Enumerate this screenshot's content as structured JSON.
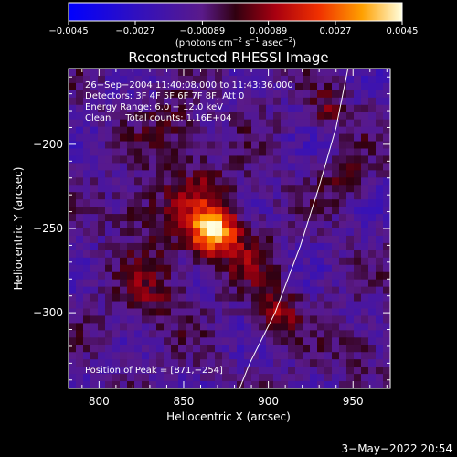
{
  "chart_data": {
    "type": "heatmap",
    "title": "Reconstructed RHESSI Image",
    "xlabel": "Heliocentric X (arcsec)",
    "ylabel": "Heliocentric Y (arcsec)",
    "xlim": [
      782,
      972
    ],
    "ylim": [
      -345,
      -155
    ],
    "xticks": [
      800,
      850,
      900,
      950
    ],
    "yticks": [
      -200,
      -250,
      -300
    ],
    "xtick_labels": [
      "800",
      "850",
      "900",
      "950"
    ],
    "ytick_labels": [
      "−200",
      "−250",
      "−300"
    ],
    "colorbar": {
      "range": [
        -0.0045,
        0.0045
      ],
      "tick_values": [
        -0.0045,
        -0.0027,
        -0.00089,
        0.00089,
        0.0027,
        0.0045
      ],
      "tick_labels": [
        "−0.0045",
        "−0.0027",
        "−0.00089",
        "0.00089",
        "0.0027",
        "0.0045"
      ],
      "unit_prefix": "(photons cm",
      "unit_sup1": "−2",
      "unit_mid1": " s",
      "unit_sup2": "−1",
      "unit_mid2": " asec",
      "unit_sup3": "−2",
      "unit_suffix": ")"
    },
    "annotations": {
      "line1": "26−Sep−2004 11:40:08.000 to 11:43:36.000",
      "line2": "Detectors: 3F 4F 5F 6F 7F 8F, Att 0",
      "line3": "Energy Range: 6.0 − 12.0 keV",
      "line4": "Clean     Total counts: 1.16E+04",
      "peak": "Position of Peak = [871,−254]"
    },
    "peak": [
      871,
      -254
    ],
    "sources": [
      {
        "x": 868,
        "y": -252,
        "amp": 0.0042,
        "sigma": 9
      },
      {
        "x": 858,
        "y": -240,
        "amp": 0.0018,
        "sigma": 20
      },
      {
        "x": 905,
        "y": -300,
        "amp": 0.0022,
        "sigma": 9
      },
      {
        "x": 935,
        "y": -180,
        "amp": 0.0016,
        "sigma": 8
      },
      {
        "x": 945,
        "y": -220,
        "amp": 0.0012,
        "sigma": 10
      },
      {
        "x": 830,
        "y": -290,
        "amp": 0.0014,
        "sigma": 14
      },
      {
        "x": 845,
        "y": -190,
        "amp": 0.0012,
        "sigma": 12
      },
      {
        "x": 820,
        "y": -240,
        "amp": 0.001,
        "sigma": 10
      },
      {
        "x": 955,
        "y": -320,
        "amp": 0.001,
        "sigma": 10
      },
      {
        "x": 890,
        "y": -270,
        "amp": 0.001,
        "sigma": 12
      }
    ],
    "limb_points": [
      [
        947,
        -155
      ],
      [
        940,
        -190
      ],
      [
        930,
        -225
      ],
      [
        919,
        -260
      ],
      [
        904,
        -300
      ],
      [
        889,
        -330
      ],
      [
        883,
        -345
      ]
    ],
    "limb_color": "#ffffff"
  },
  "footer": {
    "date": "3−May−2022 20:54"
  }
}
